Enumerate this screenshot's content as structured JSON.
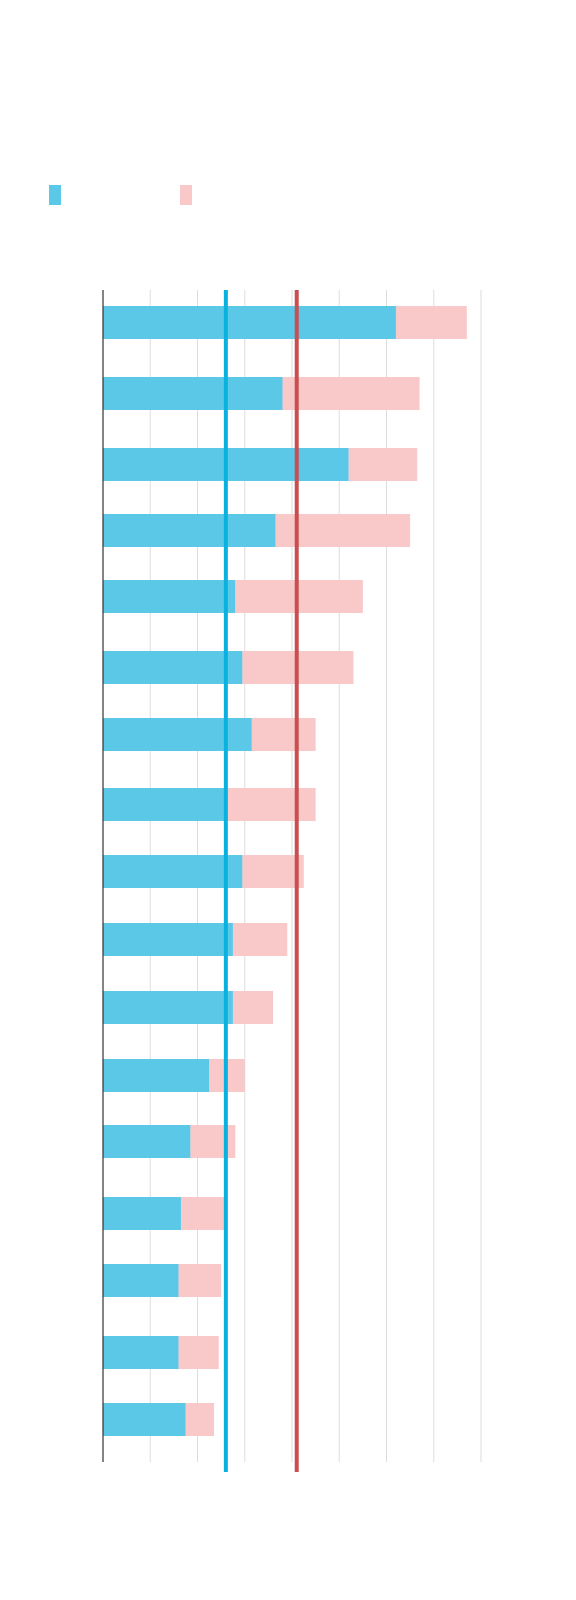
{
  "chart_data": {
    "type": "bar",
    "orientation": "horizontal",
    "stacked": true,
    "title": "",
    "xlabel": "",
    "ylabel": "",
    "categories": [
      "",
      "",
      "",
      "",
      "",
      "",
      "",
      "",
      "",
      "",
      "",
      "",
      "",
      "",
      "",
      "",
      ""
    ],
    "series": [
      {
        "name": "",
        "color": "#5bc8e8",
        "values": [
          6.2,
          3.8,
          5.2,
          3.65,
          2.8,
          2.95,
          3.15,
          2.6,
          2.95,
          2.75,
          2.75,
          2.25,
          1.85,
          1.65,
          1.6,
          1.6,
          1.75
        ]
      },
      {
        "name": "",
        "color": "#f9c8c9",
        "values": [
          1.5,
          2.9,
          1.45,
          2.85,
          2.7,
          2.35,
          1.35,
          1.9,
          1.3,
          1.15,
          0.85,
          0.75,
          0.95,
          0.95,
          0.9,
          0.85,
          0.6
        ]
      }
    ],
    "reference_lines": [
      {
        "value": 2.6,
        "color": "#0ab0de"
      },
      {
        "value": 4.1,
        "color": "#c94e50"
      }
    ],
    "xlim": [
      0,
      8
    ],
    "x_gridlines": [
      1,
      2,
      3,
      4,
      5,
      6,
      7,
      8
    ],
    "grid": true,
    "legend": "top-left"
  }
}
